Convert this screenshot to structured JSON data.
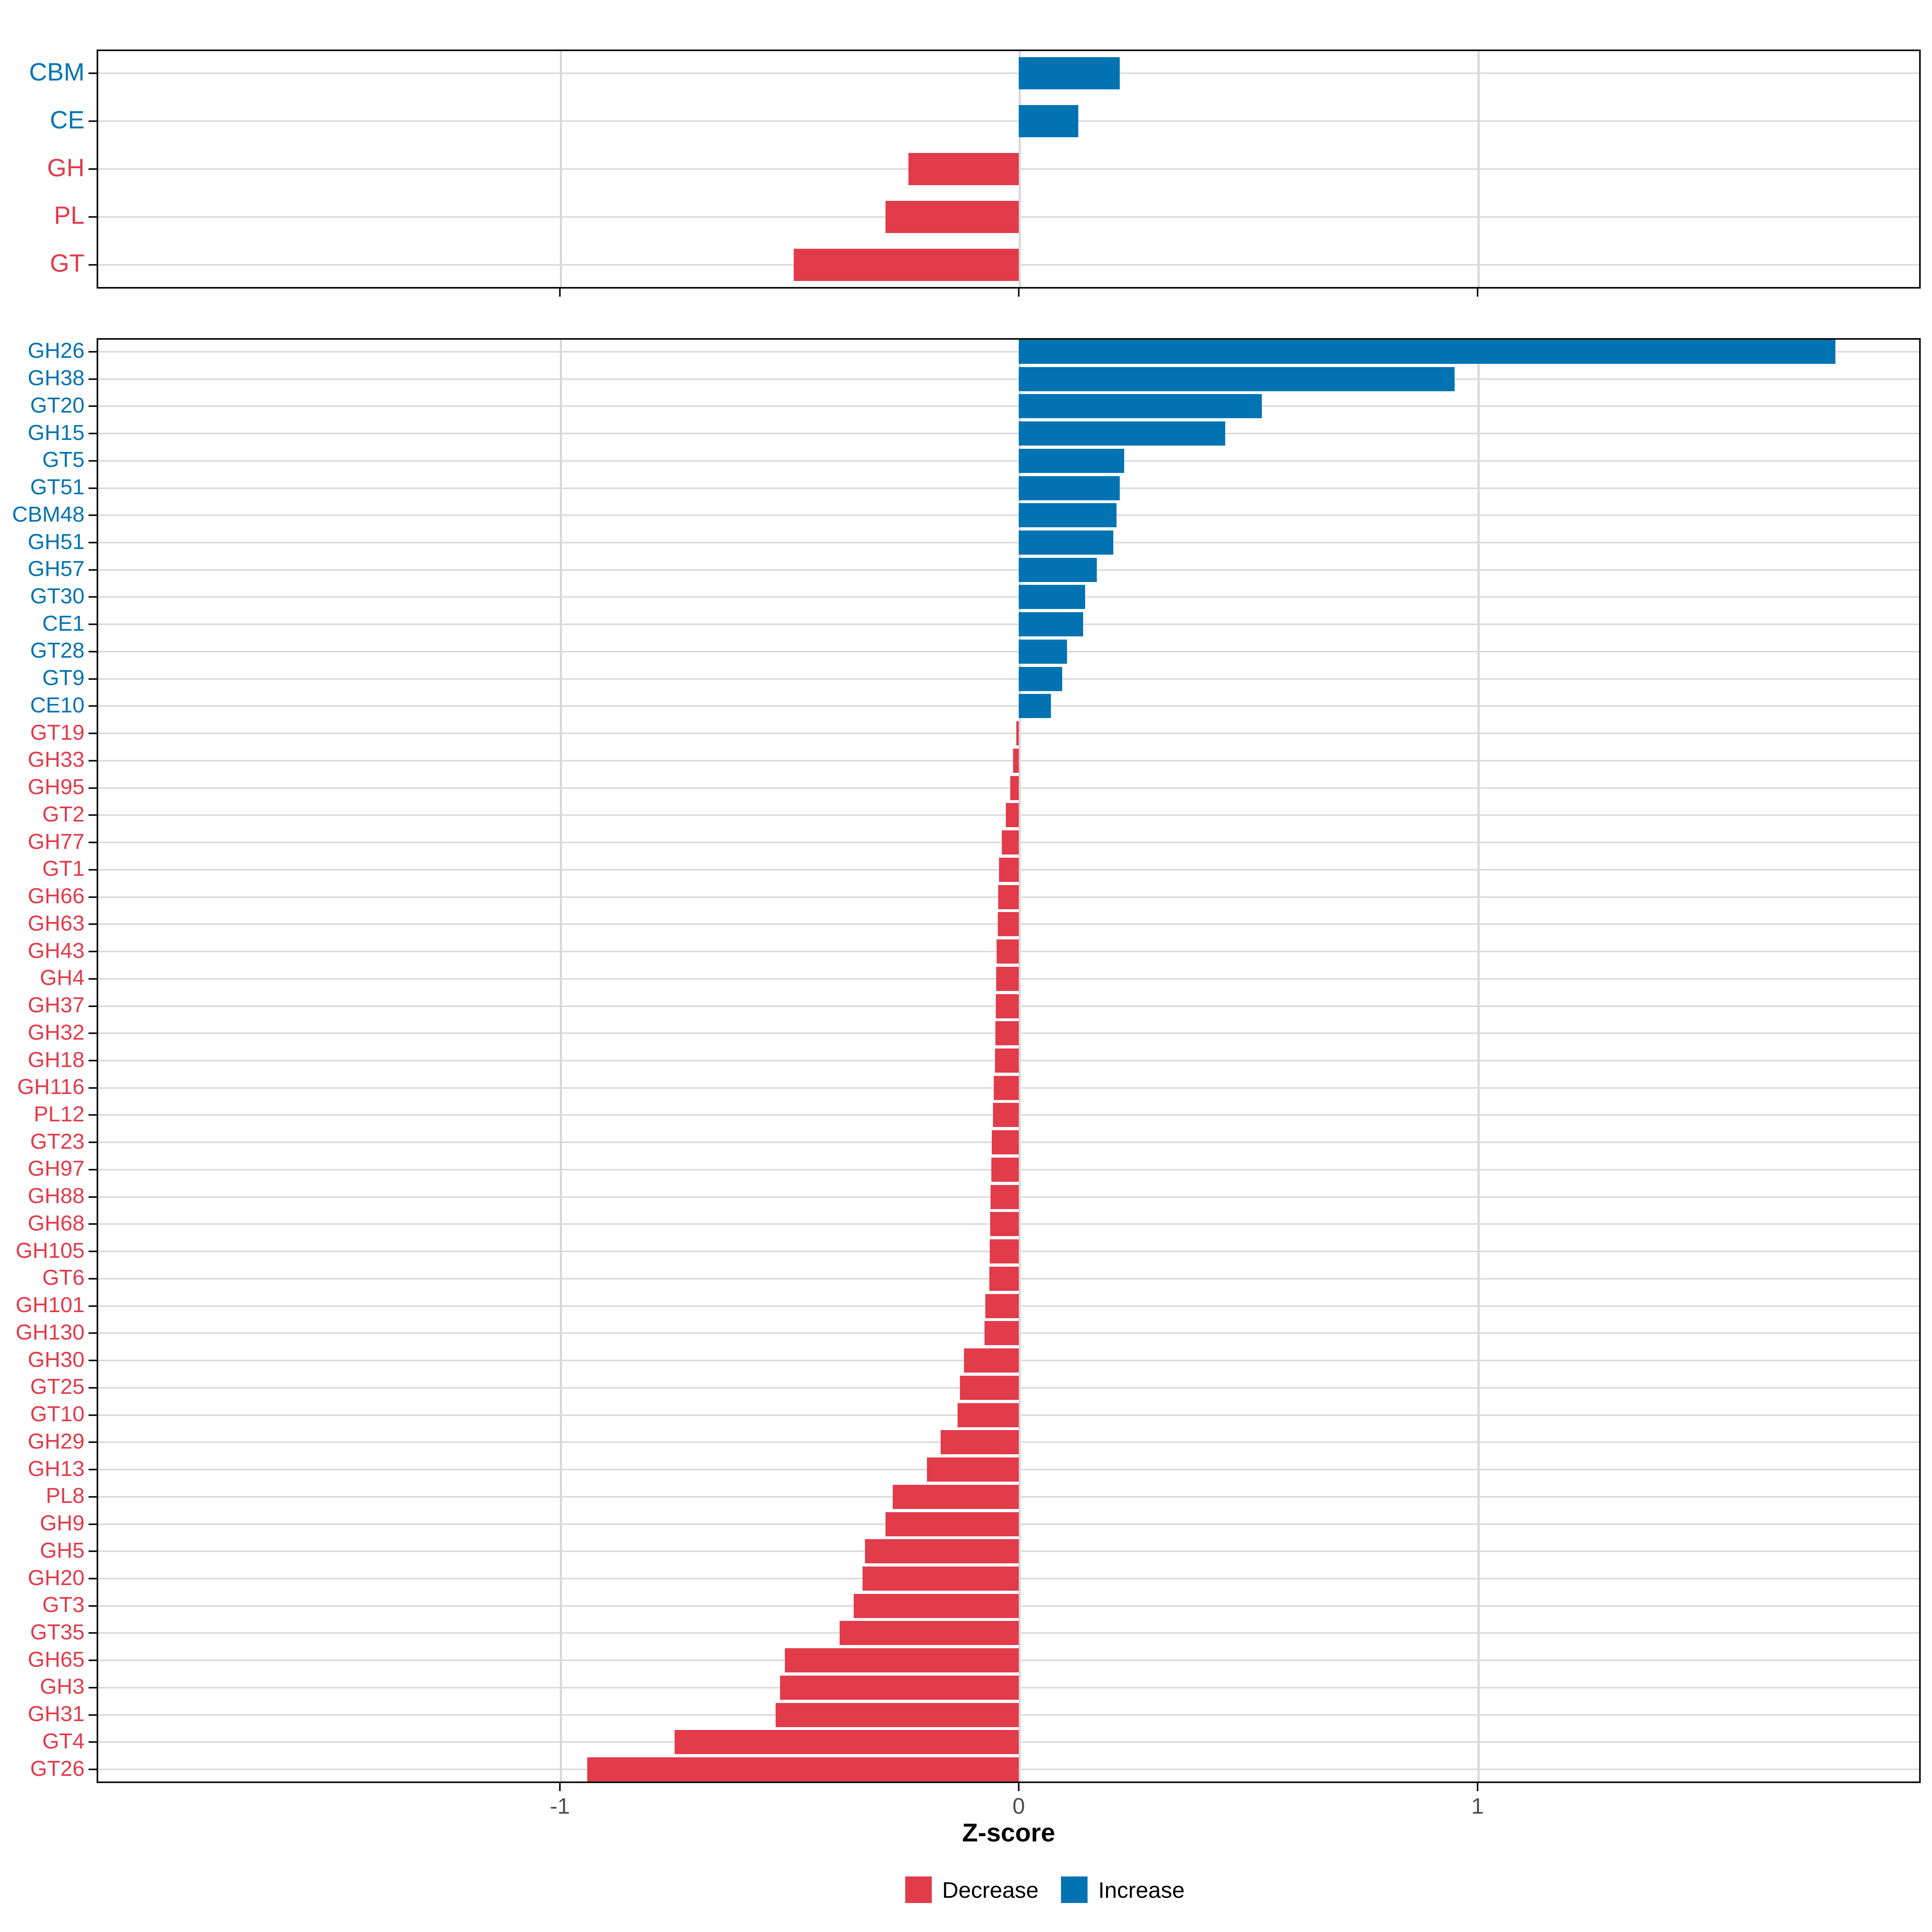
{
  "axis": {
    "label": "Z-score",
    "ticks": [
      "-1",
      "0",
      "1"
    ],
    "tick_values": [
      -1,
      0,
      1
    ]
  },
  "colors": {
    "increase": "#0173B2",
    "decrease": "#E23B4A",
    "gridline": "#DBDBDB",
    "tick_label": "#4D4D4D",
    "panel_border": "#0A0A0A"
  },
  "legend": {
    "items": [
      {
        "label": "Decrease",
        "color": "#E23B4A"
      },
      {
        "label": "Increase",
        "color": "#0173B2"
      }
    ]
  },
  "chart_data": [
    {
      "type": "bar",
      "orientation": "horizontal",
      "panel": "cazyme-class-summary",
      "categories": [
        "CBM",
        "CE",
        "GH",
        "PL",
        "GT"
      ],
      "values": [
        0.22,
        0.13,
        -0.24,
        -0.29,
        -0.49
      ],
      "xlabel": "Z-score",
      "xlim": [
        -2.01,
        1.97
      ],
      "gridlines": [
        -1,
        0,
        1
      ],
      "legend_position": "none"
    },
    {
      "type": "bar",
      "orientation": "horizontal",
      "panel": "cazyme-family-detail",
      "categories": [
        "GH26",
        "GH38",
        "GT20",
        "GH15",
        "GT5",
        "GT51",
        "CBM48",
        "GH51",
        "GH57",
        "GT30",
        "CE1",
        "GT28",
        "GT9",
        "CE10",
        "GT19",
        "GH33",
        "GH95",
        "GT2",
        "GH77",
        "GT1",
        "GH66",
        "GH63",
        "GH43",
        "GH4",
        "GH37",
        "GH32",
        "GH18",
        "GH116",
        "PL12",
        "GT23",
        "GH97",
        "GH88",
        "GH68",
        "GH105",
        "GT6",
        "GH101",
        "GH130",
        "GH30",
        "GT25",
        "GT10",
        "GH29",
        "GH13",
        "PL8",
        "GH9",
        "GH5",
        "GH20",
        "GT3",
        "GT35",
        "GH65",
        "GH3",
        "GH31",
        "GT4",
        "GT26"
      ],
      "values": [
        1.78,
        0.95,
        0.53,
        0.45,
        0.23,
        0.22,
        0.213,
        0.206,
        0.17,
        0.145,
        0.14,
        0.105,
        0.095,
        0.07,
        -0.005,
        -0.012,
        -0.018,
        -0.028,
        -0.037,
        -0.043,
        -0.045,
        -0.046,
        -0.048,
        -0.049,
        -0.05,
        -0.051,
        -0.052,
        -0.054,
        -0.056,
        -0.059,
        -0.06,
        -0.061,
        -0.062,
        -0.063,
        -0.064,
        -0.073,
        -0.075,
        -0.119,
        -0.128,
        -0.133,
        -0.17,
        -0.2,
        -0.275,
        -0.29,
        -0.335,
        -0.34,
        -0.36,
        -0.39,
        -0.51,
        -0.52,
        -0.53,
        -0.75,
        -0.94
      ],
      "xlabel": "Z-score",
      "xlim": [
        -2.01,
        1.97
      ],
      "gridlines": [
        -1,
        0,
        1
      ],
      "legend_position": "bottom"
    }
  ]
}
